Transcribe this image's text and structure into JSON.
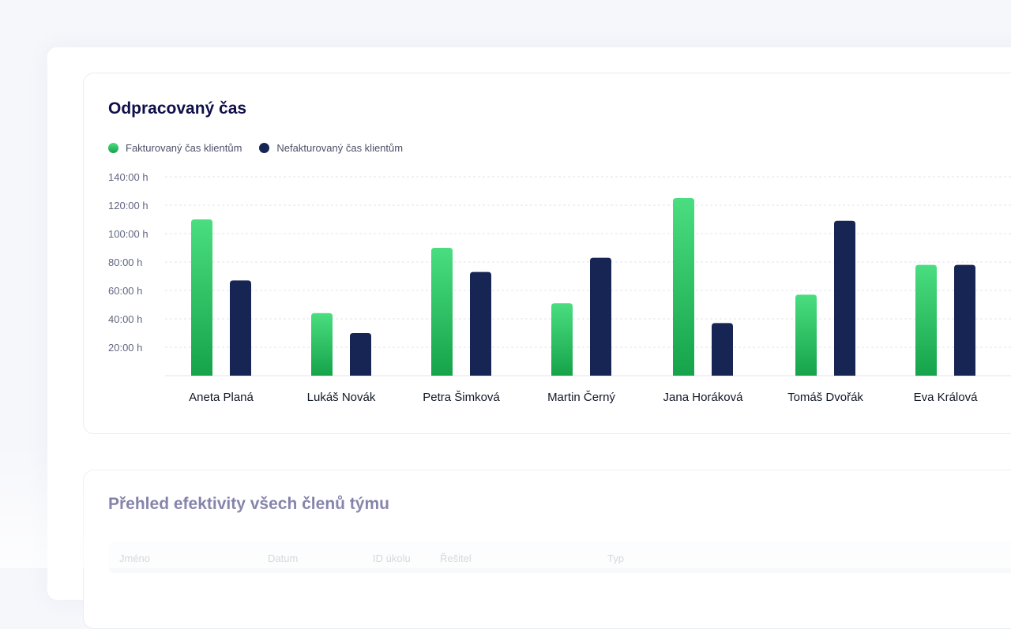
{
  "chart_card": {
    "title": "Odpracovaný čas"
  },
  "table_card": {
    "title": "Přehled efektivity všech členů týmu",
    "columns": [
      "Jméno",
      "Datum",
      "ID úkolu",
      "Řešitel",
      "Typ"
    ]
  },
  "chart_data": {
    "type": "bar",
    "title": "Odpracovaný čas",
    "categories": [
      "Aneta Planá",
      "Lukáš Novák",
      "Petra Šimková",
      "Martin Černý",
      "Jana Horáková",
      "Tomáš Dvořák",
      "Eva Králová"
    ],
    "series": [
      {
        "name": "Fakturovaný čas klientům",
        "color": "#22c55e",
        "values": [
          110,
          44,
          90,
          51,
          125,
          57,
          78
        ]
      },
      {
        "name": "Nefakturovaný čas klientům",
        "color": "#172554",
        "values": [
          67,
          30,
          73,
          83,
          37,
          109,
          78
        ]
      }
    ],
    "yticks": [
      "20:00 h",
      "40:00 h",
      "60:00 h",
      "80:00 h",
      "100:00 h",
      "120:00 h",
      "140:00 h"
    ],
    "ytick_values": [
      20,
      40,
      60,
      80,
      100,
      120,
      140
    ],
    "ylim": [
      0,
      140
    ],
    "yunit": "hours",
    "grid": true,
    "legend": "top-left"
  }
}
